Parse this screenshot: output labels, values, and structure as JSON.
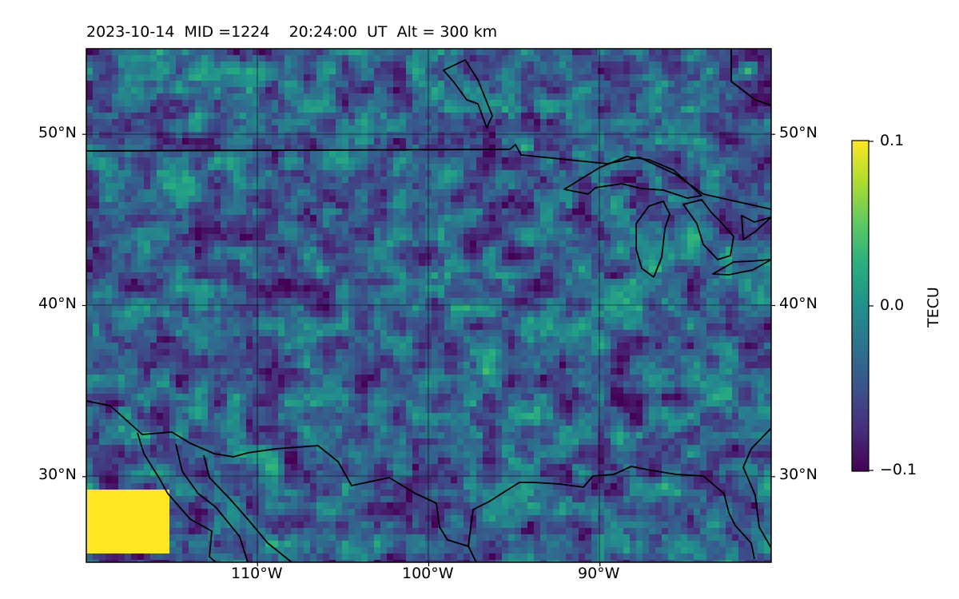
{
  "header": {
    "title": "2023-10-14  MID =1224    20:24:00  UT  Alt = 300 km"
  },
  "map": {
    "extent": {
      "lon": [
        -120,
        -80
      ],
      "lat": [
        25,
        55
      ]
    },
    "lat_ticks": [
      {
        "value": 50,
        "label": "50°N"
      },
      {
        "value": 40,
        "label": "40°N"
      },
      {
        "value": 30,
        "label": "30°N"
      }
    ],
    "lon_ticks": [
      {
        "value": -110,
        "label": "110°W"
      },
      {
        "value": -100,
        "label": "100°W"
      },
      {
        "value": -90,
        "label": "90°W"
      }
    ],
    "gridlines": true,
    "coastlines": true,
    "borders": true,
    "colormap": "viridis"
  },
  "colorbar": {
    "label": "TECU",
    "min": -0.1,
    "max": 0.1,
    "ticks": [
      {
        "value": 0.1,
        "label": "0.1"
      },
      {
        "value": 0.0,
        "label": "0.0"
      },
      {
        "value": -0.1,
        "label": "−0.1"
      }
    ]
  }
}
